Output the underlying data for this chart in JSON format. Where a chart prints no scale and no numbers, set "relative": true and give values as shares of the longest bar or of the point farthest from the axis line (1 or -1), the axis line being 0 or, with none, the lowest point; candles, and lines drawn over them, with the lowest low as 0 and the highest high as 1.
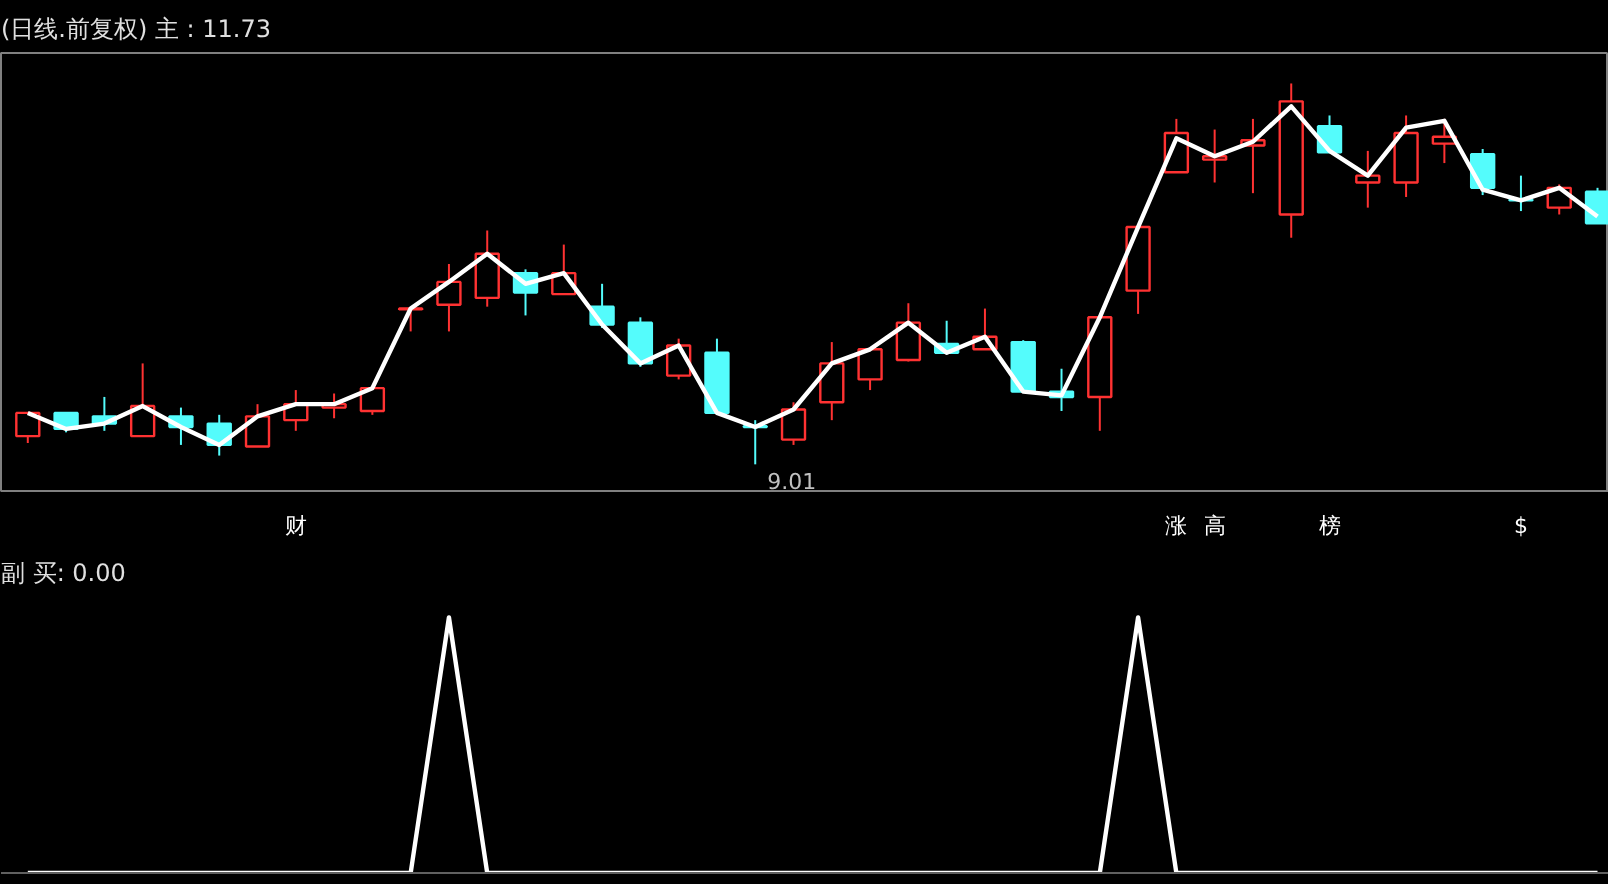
{
  "chart_data": [
    {
      "type": "candlestick",
      "title": "(日线.前复权) 主 : 11.73",
      "relative": true,
      "categories": [
        null,
        null,
        null,
        null,
        null,
        null,
        null,
        "财",
        null,
        null,
        null,
        null,
        null,
        null,
        null,
        null,
        null,
        null,
        null,
        null,
        null,
        null,
        null,
        null,
        null,
        null,
        null,
        null,
        null,
        null,
        "涨",
        "高",
        null,
        null,
        "榜",
        null,
        null,
        null,
        null,
        "$",
        null,
        null
      ],
      "ohlc": [
        [
          0.074,
          0.135,
          0.056,
          0.135
        ],
        [
          0.135,
          0.135,
          0.084,
          0.093
        ],
        [
          0.126,
          0.177,
          0.088,
          0.107
        ],
        [
          0.074,
          0.265,
          0.074,
          0.153
        ],
        [
          0.126,
          0.149,
          0.051,
          0.098
        ],
        [
          0.107,
          0.13,
          0.023,
          0.051
        ],
        [
          0.047,
          0.158,
          0.047,
          0.126
        ],
        [
          0.116,
          0.195,
          0.088,
          0.158
        ],
        [
          0.149,
          0.186,
          0.121,
          0.158
        ],
        [
          0.14,
          0.2,
          0.13,
          0.2
        ],
        [
          0.407,
          0.409,
          0.349,
          0.409
        ],
        [
          0.419,
          0.526,
          0.349,
          0.479
        ],
        [
          0.437,
          0.614,
          0.414,
          0.553
        ],
        [
          0.502,
          0.512,
          0.391,
          0.451
        ],
        [
          0.447,
          0.577,
          0.447,
          0.502
        ],
        [
          0.414,
          0.474,
          0.358,
          0.367
        ],
        [
          0.372,
          0.386,
          0.256,
          0.265
        ],
        [
          0.233,
          0.33,
          0.223,
          0.312
        ],
        [
          0.293,
          0.33,
          0.135,
          0.135
        ],
        [
          0.1,
          0.116,
          0,
          0.098
        ],
        [
          0.065,
          0.163,
          0.051,
          0.144
        ],
        [
          0.163,
          0.321,
          0.116,
          0.265
        ],
        [
          0.223,
          0.302,
          0.195,
          0.302
        ],
        [
          0.274,
          0.423,
          0.27,
          0.372
        ],
        [
          0.316,
          0.377,
          0.293,
          0.293
        ],
        [
          0.302,
          0.409,
          0.302,
          0.335
        ],
        [
          0.321,
          0.326,
          0.191,
          0.191
        ],
        [
          0.191,
          0.251,
          0.14,
          0.177
        ],
        [
          0.177,
          0.386,
          0.088,
          0.386
        ],
        [
          0.456,
          0.623,
          0.395,
          0.623
        ],
        [
          0.767,
          0.907,
          0.767,
          0.87
        ],
        [
          0.8,
          0.879,
          0.74,
          0.809
        ],
        [
          0.837,
          0.907,
          0.712,
          0.851
        ],
        [
          0.656,
          1,
          0.595,
          0.953
        ],
        [
          0.888,
          0.916,
          0.819,
          0.819
        ],
        [
          0.74,
          0.823,
          0.674,
          0.758
        ],
        [
          0.74,
          0.916,
          0.702,
          0.87
        ],
        [
          0.842,
          0.907,
          0.791,
          0.86
        ],
        [
          0.814,
          0.828,
          0.707,
          0.726
        ],
        [
          0.695,
          0.758,
          0.665,
          0.693
        ],
        [
          0.674,
          0.735,
          0.656,
          0.726
        ],
        [
          0.716,
          0.726,
          0.633,
          0.633
        ]
      ],
      "colors": [
        "#ff3232",
        "#54fcfc",
        "#54fcfc",
        "#ff3232",
        "#54fcfc",
        "#54fcfc",
        "#ff3232",
        "#ff3232",
        "#ff3232",
        "#ff3232",
        "#ff3232",
        "#ff3232",
        "#ff3232",
        "#54fcfc",
        "#ff3232",
        "#54fcfc",
        "#54fcfc",
        "#ff3232",
        "#54fcfc",
        "#54fcfc",
        "#ff3232",
        "#ff3232",
        "#ff3232",
        "#ff3232",
        "#54fcfc",
        "#ff3232",
        "#54fcfc",
        "#54fcfc",
        "#ff3232",
        "#ff3232",
        "#ff3232",
        "#ff3232",
        "#ff3232",
        "#ff3232",
        "#54fcfc",
        "#ff3232",
        "#ff3232",
        "#ff3232",
        "#54fcfc",
        "#54fcfc",
        "#ff3232",
        "#54fcfc"
      ],
      "series": [
        {
          "type": "line",
          "color": "#ffffff",
          "values": [
            0.135,
            0.093,
            0.107,
            0.153,
            0.098,
            0.051,
            0.126,
            0.158,
            0.158,
            0.2,
            0.409,
            0.479,
            0.553,
            0.474,
            0.502,
            0.367,
            0.265,
            0.312,
            0.135,
            0.098,
            0.144,
            0.265,
            0.302,
            0.372,
            0.293,
            0.335,
            0.191,
            0.181,
            0.386,
            0.623,
            0.856,
            0.809,
            0.847,
            0.94,
            0.823,
            0.758,
            0.884,
            0.902,
            0.721,
            0.693,
            0.726,
            0.651
          ]
        }
      ],
      "annotations": [
        "9.01"
      ]
    },
    {
      "type": "line",
      "title": "副 买: 0.00",
      "relative": true,
      "categories": [
        null,
        null,
        null,
        null,
        null,
        null,
        null,
        null,
        null,
        null,
        null,
        null,
        null,
        null,
        null,
        null,
        null,
        null,
        null,
        null,
        null,
        null,
        null,
        null,
        null,
        null,
        null,
        null,
        null,
        null,
        null,
        null,
        null,
        null,
        null,
        null,
        null,
        null,
        null,
        null,
        null,
        null
      ],
      "series": [
        {
          "color": "#ffffff",
          "values": [
            0,
            0,
            0,
            0,
            0,
            0,
            0,
            0,
            0,
            0,
            0,
            1,
            0,
            0,
            0,
            0,
            0,
            0,
            0,
            0,
            0,
            0,
            0,
            0,
            0,
            0,
            0,
            0,
            0,
            1,
            0,
            0,
            0,
            0,
            0,
            0,
            0,
            0,
            0,
            0,
            0,
            0
          ]
        }
      ]
    }
  ]
}
